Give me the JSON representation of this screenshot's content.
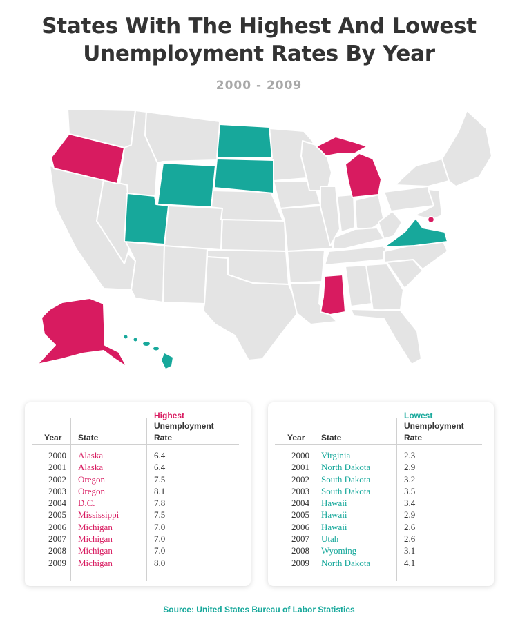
{
  "title_line1": "States With The Highest And Lowest",
  "title_line2": "Unemployment Rates By Year",
  "subtitle": "2000 - 2009",
  "colors": {
    "highest": "#d81b60",
    "lowest": "#17a89b",
    "neutral": "#e4e4e4"
  },
  "map": {
    "highlighted_highest": [
      "Oregon",
      "Michigan",
      "Mississippi",
      "Alaska",
      "D.C."
    ],
    "highlighted_lowest": [
      "North Dakota",
      "South Dakota",
      "Wyoming",
      "Utah",
      "Virginia",
      "Hawaii"
    ]
  },
  "highest_table": {
    "header_accent": "Highest",
    "header_year": "Year",
    "header_state": "State",
    "header_rate_1": "Unemployment",
    "header_rate_2": "Rate",
    "rows": [
      {
        "year": "2000",
        "state": "Alaska",
        "rate": "6.4"
      },
      {
        "year": "2001",
        "state": "Alaska",
        "rate": "6.4"
      },
      {
        "year": "2002",
        "state": "Oregon",
        "rate": "7.5"
      },
      {
        "year": "2003",
        "state": "Oregon",
        "rate": "8.1"
      },
      {
        "year": "2004",
        "state": "D.C.",
        "rate": "7.8"
      },
      {
        "year": "2005",
        "state": "Mississippi",
        "rate": "7.5"
      },
      {
        "year": "2006",
        "state": "Michigan",
        "rate": "7.0"
      },
      {
        "year": "2007",
        "state": "Michigan",
        "rate": "7.0"
      },
      {
        "year": "2008",
        "state": "Michigan",
        "rate": "7.0"
      },
      {
        "year": "2009",
        "state": "Michigan",
        "rate": "8.0"
      }
    ]
  },
  "lowest_table": {
    "header_accent": "Lowest",
    "header_year": "Year",
    "header_state": "State",
    "header_rate_1": "Unemployment",
    "header_rate_2": "Rate",
    "rows": [
      {
        "year": "2000",
        "state": "Virginia",
        "rate": "2.3"
      },
      {
        "year": "2001",
        "state": "North Dakota",
        "rate": "2.9"
      },
      {
        "year": "2002",
        "state": "South Dakota",
        "rate": "3.2"
      },
      {
        "year": "2003",
        "state": "South Dakota",
        "rate": "3.5"
      },
      {
        "year": "2004",
        "state": "Hawaii",
        "rate": "3.4"
      },
      {
        "year": "2005",
        "state": "Hawaii",
        "rate": "2.9"
      },
      {
        "year": "2006",
        "state": "Hawaii",
        "rate": "2.6"
      },
      {
        "year": "2007",
        "state": "Utah",
        "rate": "2.6"
      },
      {
        "year": "2008",
        "state": "Wyoming",
        "rate": "3.1"
      },
      {
        "year": "2009",
        "state": "North Dakota",
        "rate": "4.1"
      }
    ]
  },
  "source": "Source: United States Bureau of Labor Statistics"
}
